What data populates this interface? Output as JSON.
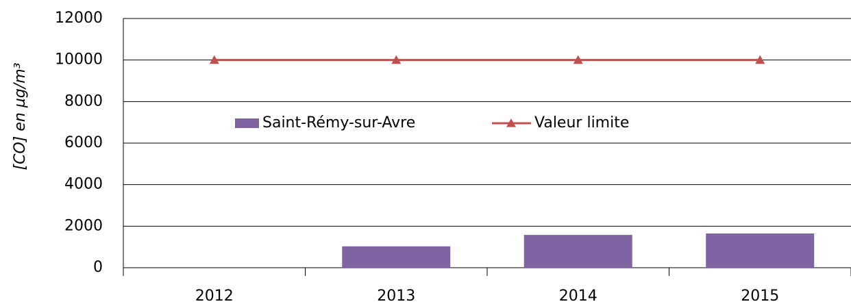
{
  "chart_data": {
    "type": "bar",
    "y_label": "[CO] en µg/m³",
    "categories": [
      "2012",
      "2013",
      "2014",
      "2015"
    ],
    "series": [
      {
        "name": "Saint-Rémy-sur-Avre",
        "type": "bar",
        "color": "#8064a2",
        "values": [
          null,
          1030,
          1580,
          1650
        ]
      },
      {
        "name": "Valeur limite",
        "type": "line",
        "color": "#c0504d",
        "values": [
          10000,
          10000,
          10000,
          10000
        ]
      }
    ],
    "ylim": [
      0,
      12000
    ],
    "yticks": [
      0,
      2000,
      4000,
      6000,
      8000,
      10000,
      12000
    ],
    "grid": true
  }
}
